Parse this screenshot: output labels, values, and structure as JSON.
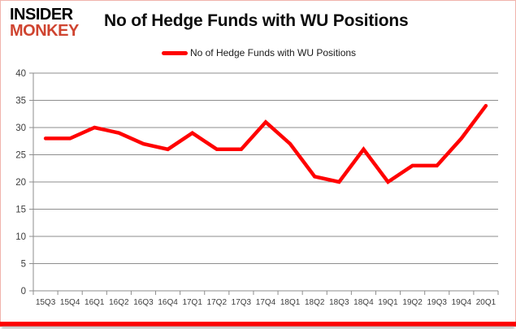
{
  "logo": {
    "line1": "INSIDER",
    "line2": "MONKEY",
    "line2_color": "#cf4430"
  },
  "header": {
    "title": "No of Hedge Funds with WU Positions"
  },
  "legend": {
    "label": "No of Hedge Funds with WU Positions",
    "swatch_color": "#ff0000"
  },
  "chart_data": {
    "type": "line",
    "title": "No of Hedge Funds with WU Positions",
    "categories": [
      "15Q3",
      "15Q4",
      "16Q1",
      "16Q2",
      "16Q3",
      "16Q4",
      "17Q1",
      "17Q2",
      "17Q3",
      "17Q4",
      "18Q1",
      "18Q2",
      "18Q3",
      "18Q4",
      "19Q1",
      "19Q2",
      "19Q3",
      "19Q4",
      "20Q1"
    ],
    "series": [
      {
        "name": "No of Hedge Funds with WU Positions",
        "color": "#ff0000",
        "values": [
          28,
          28,
          30,
          29,
          27,
          26,
          29,
          26,
          26,
          31,
          27,
          21,
          20,
          26,
          20,
          23,
          23,
          28,
          34
        ]
      }
    ],
    "ylim": [
      0,
      40
    ],
    "ytick_step": 5,
    "grid": true,
    "legend_position": "top-center",
    "xlabel": "",
    "ylabel": ""
  },
  "colors": {
    "grid": "#8e8e8e",
    "axis": "#8e8e8e",
    "tick_label": "#3d3d3d",
    "frame_border": "#f0b4ac",
    "bottom_bar": "#fe0000",
    "line": "#ff0000"
  }
}
